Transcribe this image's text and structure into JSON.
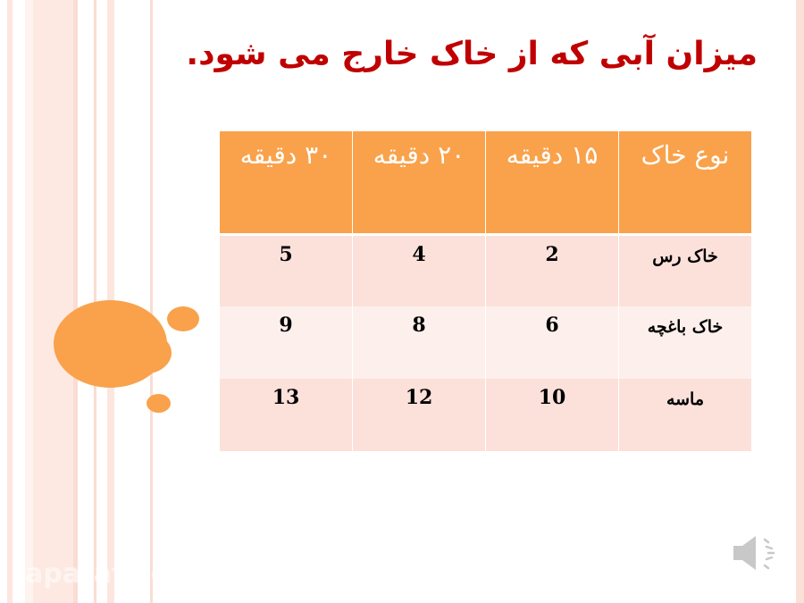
{
  "slide": {
    "title": "میزان آبی که از خاک خارج می شود.",
    "watermark": "aparat.com",
    "colors": {
      "title": "#c00000",
      "accent": "#f9a24b",
      "row_dark": "#fbe1da",
      "row_light": "#fdf0ec"
    },
    "audio_icon": "speaker-icon"
  },
  "table": {
    "headers": [
      "نوع خاک",
      "۱۵ دقیقه",
      "۲۰ دقیقه",
      "۳۰ دقیقه"
    ],
    "rows": [
      {
        "soil": "خاک رس",
        "values": [
          "2",
          "4",
          "5"
        ]
      },
      {
        "soil": "خاک باغچه",
        "values": [
          "6",
          "8",
          "9"
        ]
      },
      {
        "soil": "ماسه",
        "values": [
          "10",
          "12",
          "13"
        ]
      }
    ]
  }
}
